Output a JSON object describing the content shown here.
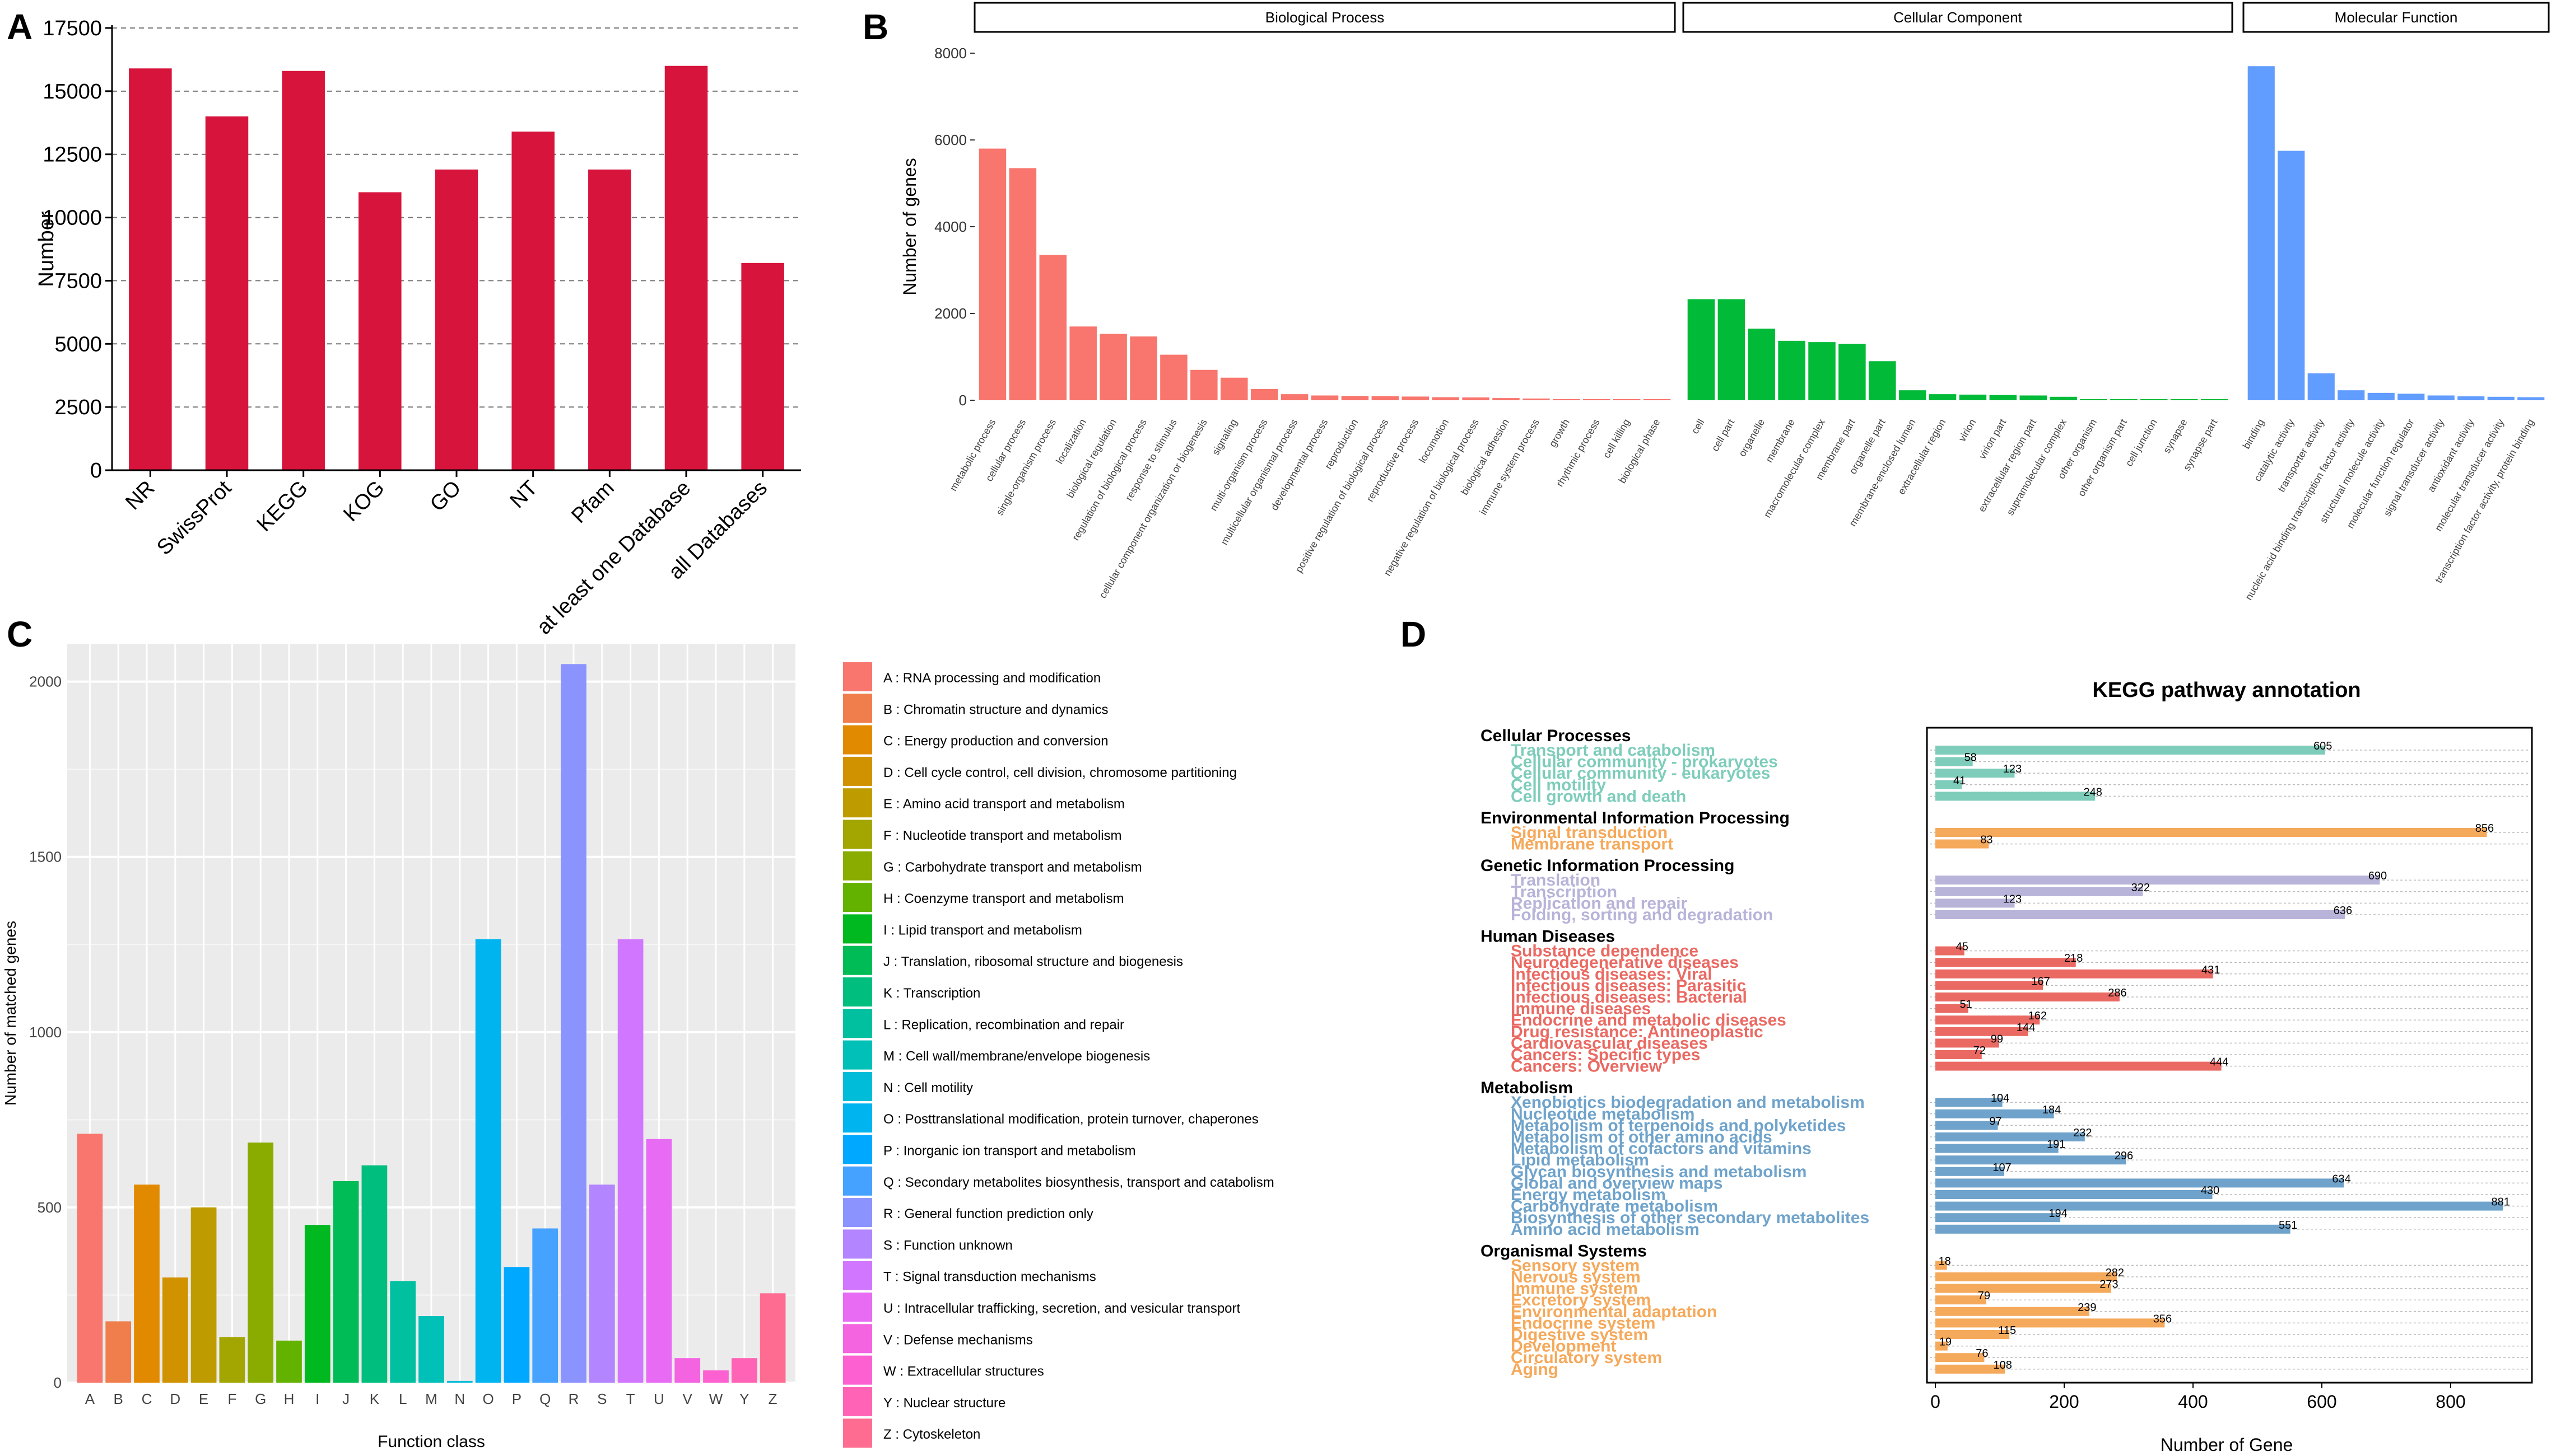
{
  "chart_data": [
    {
      "panel": "A",
      "type": "bar",
      "title": "",
      "xlabel": "",
      "ylabel": "Number",
      "ylim": [
        0,
        17500
      ],
      "yticks": [
        0,
        2500,
        5000,
        7500,
        10000,
        12500,
        15000,
        17500
      ],
      "grid": "horizontal dashed",
      "color": "#d7143c",
      "categories": [
        "NR",
        "SwissProt",
        "KEGG",
        "KOG",
        "GO",
        "NT",
        "Pfam",
        "at least one Database",
        "all Databases"
      ],
      "values": [
        15900,
        14000,
        15800,
        11000,
        11900,
        13400,
        11900,
        16000,
        8200
      ]
    },
    {
      "panel": "B",
      "type": "bar",
      "ylabel": "Number of genes",
      "ylim": [
        0,
        8000
      ],
      "yticks": [
        0,
        2000,
        4000,
        6000,
        8000
      ],
      "facets": [
        {
          "name": "Biological Process",
          "color": "#f8766d",
          "categories": [
            "metabolic process",
            "cellular process",
            "single-organism process",
            "localization",
            "biological regulation",
            "regulation of biological process",
            "response to stimulus",
            "cellular component organization or biogenesis",
            "signaling",
            "multi-organism process",
            "multicellular organismal process",
            "developmental process",
            "reproduction",
            "positive regulation of biological process",
            "reproductive process",
            "locomotion",
            "negative regulation of biological process",
            "biological adhesion",
            "immune system process",
            "growth",
            "rhythmic process",
            "cell killing",
            "biological phase"
          ],
          "values": [
            5800,
            5350,
            3350,
            1700,
            1530,
            1470,
            1050,
            700,
            520,
            260,
            140,
            110,
            100,
            95,
            85,
            70,
            65,
            50,
            40,
            25,
            15,
            10,
            5
          ]
        },
        {
          "name": "Cellular Component",
          "color": "#00ba38",
          "categories": [
            "cell",
            "cell part",
            "organelle",
            "membrane",
            "macromolecular complex",
            "membrane part",
            "organelle part",
            "membrane-enclosed lumen",
            "extracellular region",
            "virion",
            "virion part",
            "extracellular region part",
            "supramolecular complex",
            "other organism",
            "other organism part",
            "cell junction",
            "synapse",
            "synapse part"
          ],
          "values": [
            2330,
            2330,
            1650,
            1370,
            1340,
            1300,
            900,
            230,
            140,
            130,
            120,
            110,
            80,
            25,
            20,
            10,
            5,
            3
          ]
        },
        {
          "name": "Molecular Function",
          "color": "#619cff",
          "categories": [
            "binding",
            "catalytic activity",
            "transporter activity",
            "nucleic acid binding transcription factor activity",
            "structural molecule activity",
            "molecular function regulator",
            "signal transducer activity",
            "antioxidant activity",
            "molecular transducer activity",
            "transcription factor activity, protein binding"
          ],
          "values": [
            7700,
            5750,
            620,
            230,
            170,
            150,
            110,
            90,
            80,
            70
          ]
        }
      ]
    },
    {
      "panel": "C",
      "type": "bar",
      "xlabel": "Function class",
      "ylabel": "Number of matched genes",
      "ylim": [
        0,
        2100
      ],
      "yticks": [
        0,
        500,
        1000,
        1500,
        2000
      ],
      "categories": [
        "A",
        "B",
        "C",
        "D",
        "E",
        "F",
        "G",
        "H",
        "I",
        "J",
        "K",
        "L",
        "M",
        "N",
        "O",
        "P",
        "Q",
        "R",
        "S",
        "T",
        "U",
        "V",
        "W",
        "Y",
        "Z"
      ],
      "values": [
        710,
        175,
        565,
        300,
        500,
        130,
        685,
        120,
        450,
        575,
        620,
        290,
        190,
        5,
        1265,
        330,
        440,
        2050,
        565,
        1265,
        695,
        70,
        35,
        70,
        255
      ],
      "colors": [
        "#f8766d",
        "#f07e4c",
        "#e18a00",
        "#d19200",
        "#be9c00",
        "#a3a500",
        "#8aab00",
        "#64b200",
        "#00b81f",
        "#00bc56",
        "#00be7d",
        "#00c0a0",
        "#00c0b8",
        "#00bcd8",
        "#00b4f0",
        "#00a9ff",
        "#45a2ff",
        "#8b93ff",
        "#b385ff",
        "#d177ff",
        "#e76bf3",
        "#f464e0",
        "#fd61d1",
        "#ff63b6",
        "#ff6c91"
      ],
      "legend": [
        "A : RNA processing and modification",
        "B : Chromatin structure and dynamics",
        "C : Energy production and conversion",
        "D : Cell cycle control, cell division, chromosome partitioning",
        "E : Amino acid transport and metabolism",
        "F : Nucleotide transport and metabolism",
        "G : Carbohydrate transport and metabolism",
        "H : Coenzyme transport and metabolism",
        "I : Lipid transport and metabolism",
        "J : Translation, ribosomal structure and biogenesis",
        "K : Transcription",
        "L : Replication, recombination and repair",
        "M : Cell wall/membrane/envelope biogenesis",
        "N : Cell motility",
        "O : Posttranslational modification, protein turnover, chaperones",
        "P : Inorganic ion transport and metabolism",
        "Q : Secondary metabolites biosynthesis, transport and catabolism",
        "R : General function prediction only",
        "S : Function unknown",
        "T : Signal transduction mechanisms",
        "U : Intracellular trafficking, secretion, and vesicular transport",
        "V : Defense mechanisms",
        "W : Extracellular structures",
        "Y : Nuclear structure",
        "Z : Cytoskeleton"
      ]
    },
    {
      "panel": "D",
      "type": "bar",
      "orientation": "horizontal",
      "title": "KEGG pathway annotation",
      "xlabel": "Number of Gene",
      "xlim": [
        0,
        900
      ],
      "xticks": [
        0,
        200,
        400,
        600,
        800
      ],
      "groups": [
        {
          "name": "Cellular Processes",
          "color": "#7ecdbb",
          "items": [
            {
              "label": "Transport and catabolism",
              "value": 605
            },
            {
              "label": "Cellular community - prokaryotes",
              "value": 58
            },
            {
              "label": "Cellular community - eukaryotes",
              "value": 123
            },
            {
              "label": "Cell motility",
              "value": 41
            },
            {
              "label": "Cell growth and death",
              "value": 248
            }
          ]
        },
        {
          "name": "Environmental Information Processing",
          "color": "#f5a95b",
          "items": [
            {
              "label": "Signal transduction",
              "value": 856
            },
            {
              "label": "Membrane transport",
              "value": 83
            }
          ]
        },
        {
          "name": "Genetic Information Processing",
          "color": "#b8b3d9",
          "items": [
            {
              "label": "Translation",
              "value": 690
            },
            {
              "label": "Transcription",
              "value": 322
            },
            {
              "label": "Replication and repair",
              "value": 123
            },
            {
              "label": "Folding, sorting and degradation",
              "value": 636
            }
          ]
        },
        {
          "name": "Human Diseases",
          "color": "#ea6a63",
          "items": [
            {
              "label": "Substance dependence",
              "value": 45
            },
            {
              "label": "Neurodegenerative diseases",
              "value": 218
            },
            {
              "label": "Infectious diseases: Viral",
              "value": 431
            },
            {
              "label": "Infectious diseases: Parasitic",
              "value": 167
            },
            {
              "label": "Infectious diseases: Bacterial",
              "value": 286
            },
            {
              "label": "Immune diseases",
              "value": 51
            },
            {
              "label": "Endocrine and metabolic diseases",
              "value": 162
            },
            {
              "label": "Drug resistance: Antineoplastic",
              "value": 144
            },
            {
              "label": "Cardiovascular diseases",
              "value": 99
            },
            {
              "label": "Cancers: Specific types",
              "value": 72
            },
            {
              "label": "Cancers: Overview",
              "value": 444
            }
          ]
        },
        {
          "name": "Metabolism",
          "color": "#6fa3cb",
          "items": [
            {
              "label": "Xenobiotics biodegradation and metabolism",
              "value": 104
            },
            {
              "label": "Nucleotide metabolism",
              "value": 184
            },
            {
              "label": "Metabolism of terpenoids and polyketides",
              "value": 97
            },
            {
              "label": "Metabolism of other amino acids",
              "value": 232
            },
            {
              "label": "Metabolism of cofactors and vitamins",
              "value": 191
            },
            {
              "label": "Lipid metabolism",
              "value": 296
            },
            {
              "label": "Glycan biosynthesis and metabolism",
              "value": 107
            },
            {
              "label": "Global and overview maps",
              "value": 634
            },
            {
              "label": "Energy metabolism",
              "value": 430
            },
            {
              "label": "Carbohydrate metabolism",
              "value": 881
            },
            {
              "label": "Biosynthesis of other secondary metabolites",
              "value": 194
            },
            {
              "label": "Amino acid metabolism",
              "value": 551
            }
          ]
        },
        {
          "name": "Organismal Systems",
          "color": "#f5a95b",
          "items": [
            {
              "label": "Sensory system",
              "value": 18
            },
            {
              "label": "Nervous system",
              "value": 282
            },
            {
              "label": "Immune system",
              "value": 273
            },
            {
              "label": "Excretory system",
              "value": 79
            },
            {
              "label": "Environmental adaptation",
              "value": 239
            },
            {
              "label": "Endocrine system",
              "value": 356
            },
            {
              "label": "Digestive system",
              "value": 115
            },
            {
              "label": "Development",
              "value": 19
            },
            {
              "label": "Circulatory system",
              "value": 76
            },
            {
              "label": "Aging",
              "value": 108
            }
          ]
        }
      ]
    }
  ]
}
